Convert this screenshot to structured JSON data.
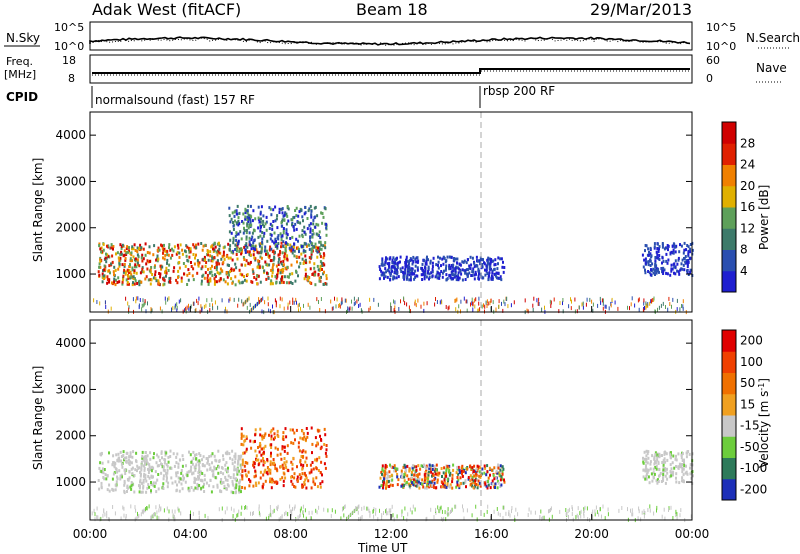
{
  "header": {
    "site": "Adak West (fitACF)",
    "beam": "Beam 18",
    "date": "29/Mar/2013"
  },
  "top_panels": {
    "nsky": {
      "label": "N.Sky",
      "tick_top": "10^5",
      "tick_bottom": "10^0",
      "right_label": "N.Search",
      "right_tick_top": "10^5",
      "right_tick_bottom": "10^0"
    },
    "freq": {
      "label_line1": "Freq.",
      "label_line2": "[MHz]",
      "tick_top": "18",
      "tick_bottom": "8",
      "right_label": "Nave",
      "right_tick_top": "60",
      "right_tick_bottom": "0"
    },
    "cpid": {
      "label": "CPID",
      "modes": [
        {
          "text": "normalsound (fast) 157 RF",
          "start_hour": 0,
          "end_hour": 15.6
        },
        {
          "text": "rbsp 200 RF",
          "start_hour": 15.6,
          "end_hour": 24
        }
      ]
    }
  },
  "chart_data": [
    {
      "type": "heatmap",
      "title": "",
      "xlabel": "Time UT",
      "ylabel": "Slant Range [km]",
      "x_ticks": [
        "00:00",
        "04:00",
        "08:00",
        "12:00",
        "16:00",
        "20:00",
        "00:00"
      ],
      "y_ticks": [
        "1000",
        "2000",
        "3000",
        "4000"
      ],
      "xlim_hours": [
        0,
        24
      ],
      "ylim_km": [
        180,
        4500
      ],
      "colorbar": {
        "label": "Power [dB]",
        "ticks": [
          "4",
          "8",
          "12",
          "16",
          "20",
          "24",
          "28"
        ],
        "range": [
          0,
          30
        ]
      },
      "colors": [
        "#1f1fd0",
        "#2a4fb0",
        "#3d7a6a",
        "#5ea05a",
        "#e0b000",
        "#f08000",
        "#e02000",
        "#d00000"
      ],
      "echo_regions": [
        {
          "start_hour": 0.3,
          "end_hour": 9.4,
          "range_km": [
            800,
            1700
          ],
          "level": "high"
        },
        {
          "start_hour": 5.5,
          "end_hour": 9.4,
          "range_km": [
            1500,
            2500
          ],
          "level": "medium"
        },
        {
          "start_hour": 11.5,
          "end_hour": 16.5,
          "range_km": [
            900,
            1400
          ],
          "level": "low"
        },
        {
          "start_hour": 22.0,
          "end_hour": 24.0,
          "range_km": [
            1000,
            1700
          ],
          "level": "low"
        }
      ]
    },
    {
      "type": "heatmap",
      "title": "",
      "xlabel": "Time UT",
      "ylabel": "Slant Range [km]",
      "x_ticks": [
        "00:00",
        "04:00",
        "08:00",
        "12:00",
        "16:00",
        "20:00",
        "00:00"
      ],
      "y_ticks": [
        "1000",
        "2000",
        "3000",
        "4000"
      ],
      "xlim_hours": [
        0,
        24
      ],
      "ylim_km": [
        180,
        4500
      ],
      "colorbar": {
        "label": "Velocity [m s-1]",
        "ticks": [
          "200",
          "100",
          "50",
          "15",
          "-15",
          "-50",
          "-100",
          "-200"
        ],
        "range": [
          -250,
          250
        ]
      },
      "colors": [
        "#1c2fb8",
        "#2d7a5a",
        "#6ccd3c",
        "#c8c8c8",
        "#f0a020",
        "#f07000",
        "#f04000",
        "#e00000"
      ],
      "echo_regions": [
        {
          "start_hour": 0.3,
          "end_hour": 6.0,
          "range_km": [
            800,
            1700
          ],
          "velocity": "near-zero"
        },
        {
          "start_hour": 6.0,
          "end_hour": 9.4,
          "range_km": [
            900,
            2200
          ],
          "velocity": "negative"
        },
        {
          "start_hour": 11.5,
          "end_hour": 16.5,
          "range_km": [
            900,
            1400
          ],
          "velocity": "mixed"
        },
        {
          "start_hour": 22.0,
          "end_hour": 24.0,
          "range_km": [
            1000,
            1700
          ],
          "velocity": "near-zero"
        }
      ]
    }
  ],
  "time_axis_label": "Time UT"
}
